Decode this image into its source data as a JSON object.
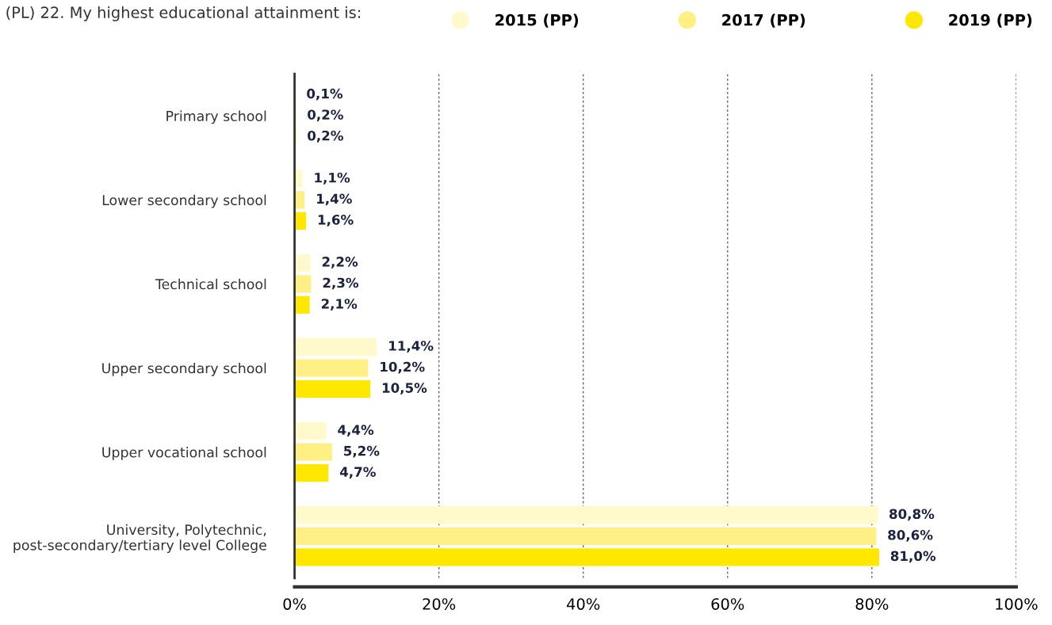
{
  "chart_data": {
    "type": "bar",
    "orientation": "horizontal",
    "title": "(PL) 22. My highest educational attainment is:",
    "categories": [
      "Primary school",
      "Lower secondary school",
      "Technical school",
      "Upper secondary school",
      "Upper vocational school",
      "University, Polytechnic,\npost-secondary/tertiary level College"
    ],
    "series": [
      {
        "name": "2015 (PP)",
        "color": "#fff9cc",
        "values": [
          0.1,
          1.1,
          2.2,
          11.4,
          4.4,
          80.8
        ],
        "value_labels": [
          "0,1%",
          "1,1%",
          "2,2%",
          "11,4%",
          "4,4%",
          "80,8%"
        ]
      },
      {
        "name": "2017 (PP)",
        "color": "#fff085",
        "values": [
          0.2,
          1.4,
          2.3,
          10.2,
          5.2,
          80.6
        ],
        "value_labels": [
          "0,2%",
          "1,4%",
          "2,3%",
          "10,2%",
          "5,2%",
          "80,6%"
        ]
      },
      {
        "name": "2019 (PP)",
        "color": "#ffe800",
        "values": [
          0.2,
          1.6,
          2.1,
          10.5,
          4.7,
          81.0
        ],
        "value_labels": [
          "0,2%",
          "1,6%",
          "2,1%",
          "10,5%",
          "4,7%",
          "81,0%"
        ]
      }
    ],
    "xlim": [
      0,
      100
    ],
    "xticks": [
      {
        "value": 0,
        "label": "0%"
      },
      {
        "value": 20,
        "label": "20%"
      },
      {
        "value": 40,
        "label": "40%"
      },
      {
        "value": 60,
        "label": "60%"
      },
      {
        "value": 80,
        "label": "80%"
      },
      {
        "value": 100,
        "label": "100%"
      }
    ],
    "grid": "x",
    "legend": "top right"
  }
}
